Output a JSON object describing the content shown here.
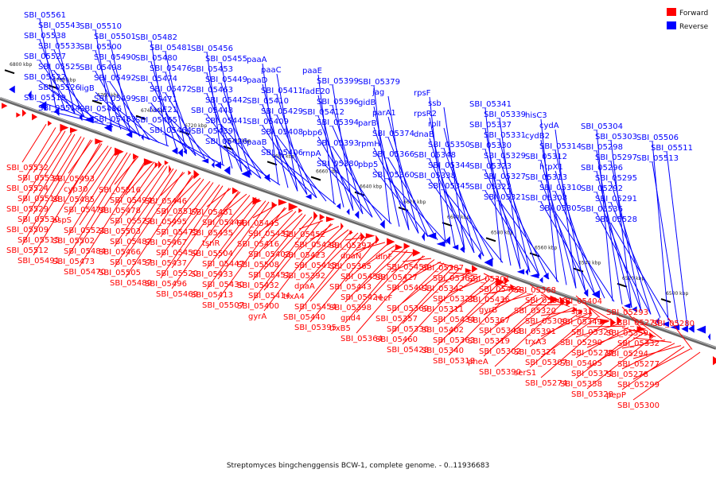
{
  "caption": "Streptomyces bingchenggensis BCW-1, complete genome. - 0..11936683",
  "legend": [
    {
      "label": "Forward",
      "color": "#ff0000"
    },
    {
      "label": "Reverse",
      "color": "#0000ff"
    }
  ],
  "ticks": [
    "6800 kbp",
    "6780 kbp",
    "6760 kbp",
    "6740 kbp",
    "6720 kbp",
    "6700 kbp",
    "6680 kbp",
    "6660 kbp",
    "6640 kbp",
    "6620 kbp",
    "6600 kbp",
    "6580 kbp",
    "6560 kbp",
    "6540 kbp",
    "6520 kbp",
    "6500 kbp"
  ],
  "reverse_labels": [
    "SBI_05561",
    "SBI_05543",
    "SBI_05538",
    "SBI_05533",
    "SBI_05527",
    "SBI_05525",
    "SBI_05522",
    "SBI_05526",
    "SBI_05519",
    "SBI_05514",
    "SBI_05510",
    "SBI_05501",
    "SBI_05500",
    "SBI_05490",
    "SBI_05498",
    "SBI_05492",
    "ligB",
    "SBI_05499",
    "SBI_05486",
    "SBI_05483",
    "SBI_05482",
    "SBI_05481",
    "SBI_05480",
    "SBI_05476",
    "SBI_05474",
    "SBI_05472",
    "SBI_05471",
    "fadE21",
    "SBI_05465",
    "SBI_05464",
    "SBI_05456",
    "SBI_05455",
    "SBI_05453",
    "SBI_05449",
    "SBI_05463",
    "SBI_05442",
    "SBI_05448",
    "SBI_05441",
    "SBI_05439",
    "SBI_05426",
    "paaA",
    "paaC",
    "paaD",
    "SBI_05411",
    "SBI_05410",
    "SBI_05429",
    "SBI_05409",
    "SBI_05408",
    "paaB",
    "SBI_05406",
    "paaE",
    "SBI_05399",
    "fadE20",
    "SBI_05396",
    "SBI_05412",
    "SBI_05394",
    "pbp6",
    "SBI_05393",
    "rnpA",
    "SBI_05380",
    "SBI_05379",
    "jag",
    "gidB",
    "parA1",
    "parB",
    "SBI_05374",
    "rpmH",
    "SBI_05366",
    "pbp5",
    "SBI_05360",
    "rpsF",
    "ssb",
    "rpsR2",
    "rplI",
    "dnaB",
    "SBI_05350",
    "SBI_05348",
    "SBI_05344",
    "SBI_05338",
    "SBI_05345",
    "SBI_05341",
    "SBI_05339",
    "SBI_05337",
    "SBI_05331",
    "SBI_05330",
    "SBI_05329",
    "SBI_05323",
    "SBI_05327",
    "SBI_05322",
    "SBI_05321",
    "hisC3",
    "cydA",
    "cydB2",
    "SBI_05314",
    "SBI_05312",
    "htpX1",
    "SBI_05313",
    "SBI_05310",
    "SBI_05308",
    "SBI_05305",
    "SBI_05304",
    "SBI_05303",
    "SBI_05298",
    "SBI_05297",
    "SBI_05296",
    "SBI_05295",
    "SBI_05292",
    "SBI_05291",
    "SBI_05536",
    "SBI_05528",
    "SBI_05506",
    "SBI_05511",
    "SBI_05513"
  ],
  "forward_labels": [
    "SBI_05532",
    "SBI_05534",
    "SBI_05524",
    "SBI_05518",
    "SBI_05529",
    "SBI_05530",
    "SBI_05509",
    "SBI_05515",
    "SBI_05512",
    "SBI_05491",
    "SBI_05493",
    "cyp30",
    "SBI_05485",
    "SBI_05479",
    "aspS",
    "SBI_05521",
    "SBI_05502",
    "SBI_05484",
    "SBI_05473",
    "SBI_05470",
    "SBI_05516",
    "SBI_05494",
    "SBI_05478",
    "SBI_05523",
    "SBI_05503",
    "SBI_05487",
    "SBI_05466",
    "SBI_05457",
    "SBI_05505",
    "SBI_05489",
    "SBI_05446",
    "SBI_05517",
    "SBI_05495",
    "SBI_05475",
    "SBI_05467",
    "SBI_05450",
    "SBI_05437",
    "SBI_05520",
    "SBI_05496",
    "SBI_05469",
    "SBI_05461",
    "SBI_05444",
    "SBI_05435",
    "tsnR",
    "SBI_05504",
    "SBI_05447",
    "SBI_05433",
    "SBI_05430",
    "SBI_05413",
    "SBI_05507",
    "SBI_05445",
    "SBI_05431",
    "SBI_05416",
    "SBI_05403",
    "SBI_05508",
    "SBI_05451",
    "SBI_05432",
    "SBI_05414",
    "SBI_05400",
    "gyrA",
    "SBI_05452",
    "SBI_05438",
    "SBI_05423",
    "SBI_05415",
    "SBI_05392",
    "dnaA",
    "trxA4",
    "SBI_05454",
    "SBI_05440",
    "SBI_05395",
    "SBI_05397",
    "dnaN",
    "SBI_05365",
    "SBI_05458",
    "SBI_05443",
    "SBI_05424",
    "SBI_05398",
    "gnd4",
    "trxB5",
    "SBI_05364",
    "dinF",
    "SBI_05459",
    "SBI_05427",
    "SBI_05401",
    "recF",
    "SBI_05369",
    "SBI_05357",
    "SBI_05336",
    "SBI_05460",
    "SBI_05428",
    "SBI_05387",
    "SBI_05362",
    "SBI_05342",
    "SBI_05325",
    "SBI_05311",
    "SBI_05434",
    "SBI_05402",
    "SBI_05363",
    "SBI_05340",
    "SBI_05318",
    "SBI_05301",
    "SBI_05462",
    "SBI_05436",
    "gyrB",
    "SBI_05367",
    "SBI_05343",
    "SBI_05319",
    "SBI_05302",
    "pheA",
    "SBI_05390",
    "SBI_05368",
    "SBI_05346",
    "SBI_05320",
    "SBI_05306",
    "SBI_05391",
    "trxA3",
    "SBI_05324",
    "SBI_05307",
    "serS1",
    "SBI_05274",
    "SBI_05404",
    "sig31",
    "SBI_05349",
    "SBI_05326",
    "SBI_05290",
    "SBI_05275",
    "SBI_05405",
    "SBI_05371",
    "SBI_05358",
    "SBI_05328",
    "SBI_05293",
    "SBI_05276",
    "SBI_05359",
    "SBI_05332",
    "SBI_05294",
    "SBI_05277",
    "SBI_05278",
    "SBI_05299",
    "pepP",
    "SBI_05300",
    "SBI_05280"
  ]
}
